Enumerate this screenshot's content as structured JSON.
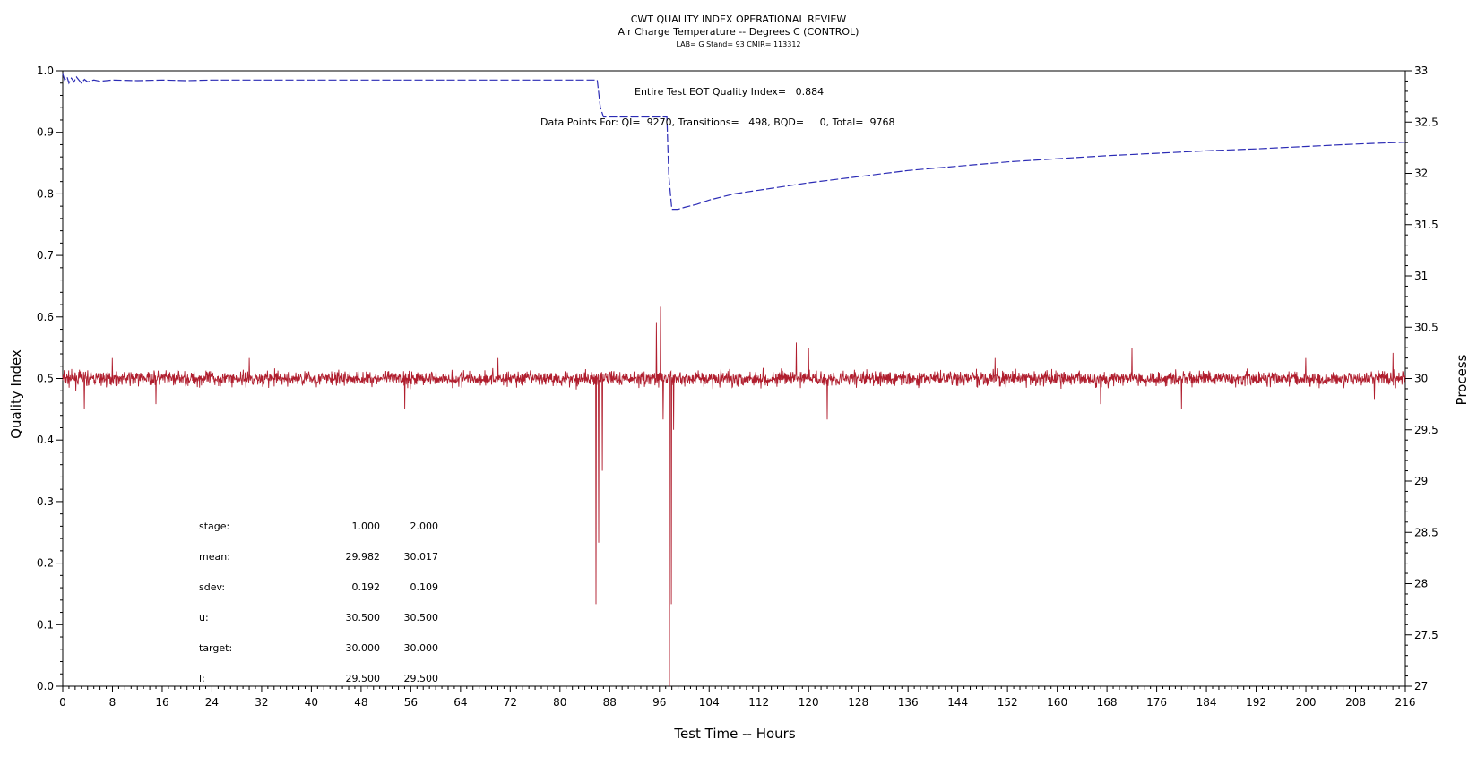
{
  "chart_data": {
    "type": "line",
    "title": "CWT QUALITY INDEX OPERATIONAL REVIEW",
    "subtitle": "Air Charge Temperature -- Degrees C (CONTROL)",
    "subtitle2": "LAB= G Stand= 93 CMIR= 113312",
    "xlabel": "Test Time -- Hours",
    "ylabel_left": "Quality Index",
    "ylabel_right": "Process",
    "xlim": [
      0,
      216
    ],
    "xticks": [
      0,
      8,
      16,
      24,
      32,
      40,
      48,
      56,
      64,
      72,
      80,
      88,
      96,
      104,
      112,
      120,
      128,
      136,
      144,
      152,
      160,
      168,
      176,
      184,
      192,
      200,
      208,
      216
    ],
    "ylim_left": [
      0,
      1
    ],
    "yticks_left": [
      "0.0",
      "0.1",
      "0.2",
      "0.3",
      "0.4",
      "0.5",
      "0.6",
      "0.7",
      "0.8",
      "0.9",
      "1.0"
    ],
    "ylim_right": [
      27,
      33
    ],
    "yticks_right": [
      "27",
      "27.5",
      "28",
      "28.5",
      "29",
      "29.5",
      "30",
      "30.5",
      "31",
      "31.5",
      "32",
      "32.5",
      "33"
    ],
    "grid": false,
    "annotations": {
      "eot_quality": "Entire Test EOT Quality Index=   0.884",
      "data_points": "Data Points For: QI=  9270, Transitions=   498, BQD=     0, Total=  9768"
    },
    "series": [
      {
        "axis": "left",
        "color": "#2b2bb5",
        "style": "dashed",
        "x": [
          0,
          0.3,
          0.7,
          1,
          1.4,
          1.8,
          2.2,
          2.6,
          3,
          3.5,
          4,
          5,
          6,
          8,
          12,
          16,
          20,
          24,
          28,
          36,
          44,
          60,
          72,
          80,
          86,
          86.5,
          87,
          88,
          90,
          92,
          94,
          96,
          97.2,
          97.5,
          98,
          99,
          100,
          102,
          104,
          108,
          112,
          116,
          120,
          128,
          136,
          144,
          152,
          160,
          168,
          176,
          184,
          192,
          200,
          208,
          216
        ],
        "y": [
          0.995,
          0.985,
          0.99,
          0.98,
          0.988,
          0.982,
          0.99,
          0.985,
          0.98,
          0.986,
          0.982,
          0.985,
          0.983,
          0.985,
          0.984,
          0.985,
          0.984,
          0.985,
          0.985,
          0.985,
          0.985,
          0.985,
          0.985,
          0.985,
          0.985,
          0.94,
          0.925,
          0.925,
          0.925,
          0.925,
          0.925,
          0.925,
          0.925,
          0.83,
          0.775,
          0.775,
          0.778,
          0.783,
          0.79,
          0.8,
          0.806,
          0.812,
          0.818,
          0.828,
          0.838,
          0.845,
          0.852,
          0.857,
          0.862,
          0.866,
          0.87,
          0.873,
          0.877,
          0.881,
          0.884
        ]
      },
      {
        "axis": "right",
        "color": "#b01e2e",
        "style": "solid",
        "baseline": 30,
        "noise_sdev": 0.07,
        "spikes": [
          {
            "x": 3.5,
            "y": 29.7
          },
          {
            "x": 8,
            "y": 30.2
          },
          {
            "x": 15,
            "y": 29.75
          },
          {
            "x": 30,
            "y": 30.2
          },
          {
            "x": 55,
            "y": 29.7
          },
          {
            "x": 70,
            "y": 30.2
          },
          {
            "x": 85.8,
            "y": 27.8
          },
          {
            "x": 86.2,
            "y": 28.4
          },
          {
            "x": 86.8,
            "y": 29.1
          },
          {
            "x": 95.5,
            "y": 30.55
          },
          {
            "x": 96.2,
            "y": 30.7
          },
          {
            "x": 96.6,
            "y": 29.6
          },
          {
            "x": 97.6,
            "y": 27.0
          },
          {
            "x": 97.9,
            "y": 27.8
          },
          {
            "x": 98.3,
            "y": 29.5
          },
          {
            "x": 118,
            "y": 30.35
          },
          {
            "x": 120,
            "y": 30.3
          },
          {
            "x": 123,
            "y": 29.6
          },
          {
            "x": 150,
            "y": 30.2
          },
          {
            "x": 167,
            "y": 29.75
          },
          {
            "x": 172,
            "y": 30.3
          },
          {
            "x": 180,
            "y": 29.7
          },
          {
            "x": 200,
            "y": 30.2
          },
          {
            "x": 211,
            "y": 29.8
          },
          {
            "x": 214,
            "y": 30.25
          }
        ]
      }
    ],
    "stats_table": {
      "headers": [
        "stage:",
        "1.000",
        "2.000"
      ],
      "rows": [
        [
          "mean:",
          "29.982",
          "30.017"
        ],
        [
          "sdev:",
          "0.192",
          "0.109"
        ],
        [
          "u:",
          "30.500",
          "30.500"
        ],
        [
          "target:",
          "30.000",
          "30.000"
        ],
        [
          "l:",
          "29.500",
          "29.500"
        ]
      ]
    }
  }
}
